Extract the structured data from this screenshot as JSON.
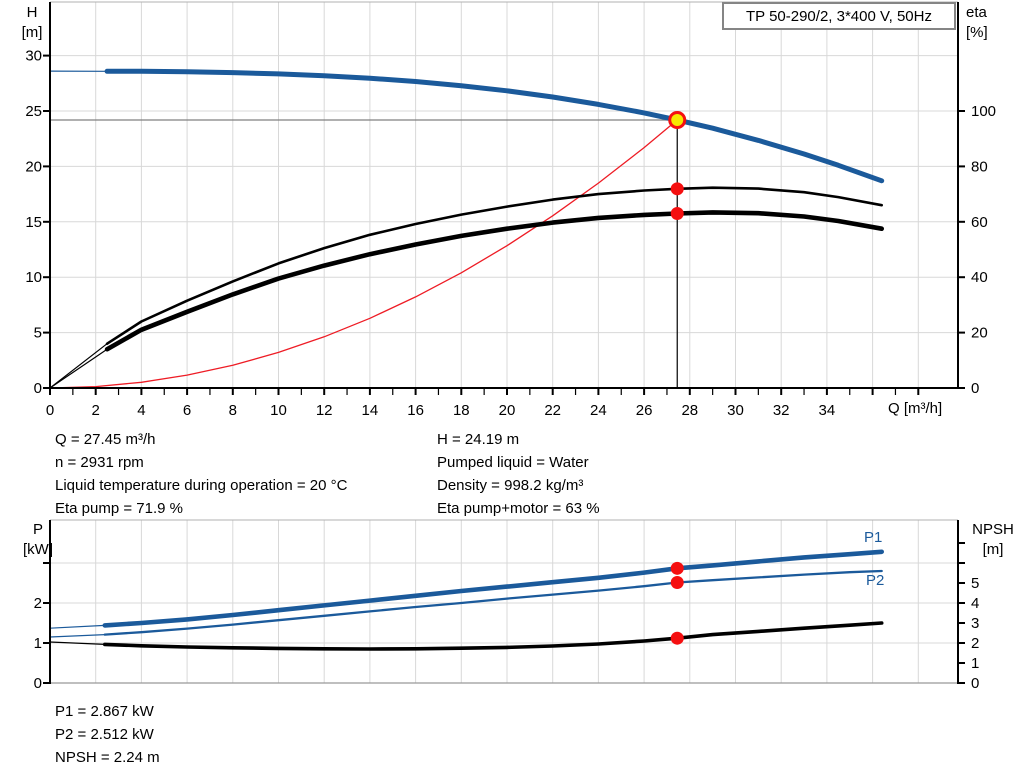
{
  "header": {
    "title": "TP 50-290/2, 3*400 V, 50Hz"
  },
  "colors": {
    "blue": "#1b5a9b",
    "black": "#000000",
    "red": "#ee1c25",
    "marker_red": "#f50f10",
    "duty_yellow": "#f7e700",
    "grid": "#d8d8d8",
    "border_gray": "#b0b0b0",
    "duty_line_gray": "#808080",
    "axis": "#000000"
  },
  "top_chart": {
    "left_axis_label": [
      "H",
      "[m]"
    ],
    "right_axis_label": [
      "eta",
      "[%]"
    ],
    "x_axis_label": "Q [m³/h]",
    "x_tick_labels": [
      0,
      2,
      4,
      6,
      8,
      10,
      12,
      14,
      16,
      18,
      20,
      22,
      24,
      26,
      28,
      30,
      32,
      34
    ],
    "h_tick_labels": [
      0,
      5,
      10,
      15,
      20,
      25,
      30
    ],
    "eta_tick_labels": [
      0,
      20,
      40,
      60,
      80,
      100
    ]
  },
  "bottom_chart": {
    "left_axis_label": [
      "P",
      "[kW]"
    ],
    "right_axis_label": [
      "NPSH",
      "[m]"
    ],
    "p_tick_labels": [
      0,
      1,
      2
    ],
    "p_ticks": [
      0,
      1,
      2,
      3
    ],
    "npsh_tick_labels": [
      0,
      1,
      2,
      3,
      4,
      5
    ],
    "npsh_ticks": [
      0,
      1,
      2,
      3,
      4,
      5,
      6,
      7
    ],
    "series_labels": {
      "p1": "P1",
      "p2": "P2"
    }
  },
  "annotations": {
    "left": [
      "Q = 27.45 m³/h",
      "n = 2931 rpm",
      "Liquid temperature during operation = 20 °C",
      "Eta pump = 71.9 %"
    ],
    "right": [
      "H = 24.19 m",
      "Pumped liquid = Water",
      "Density = 998.2 kg/m³",
      "Eta pump+motor = 63 %"
    ]
  },
  "results": [
    "P1 = 2.867 kW",
    "P2 = 2.512 kW",
    "NPSH = 2.24 m"
  ],
  "chart_data": [
    {
      "type": "line",
      "title": "TP 50-290/2, 3*400 V, 50Hz",
      "xlabel": "Q [m³/h]",
      "y_left_label": "H [m]",
      "y_right_label": "eta [%]",
      "xlim": [
        0,
        39.7
      ],
      "ylim_left": [
        0,
        34.8
      ],
      "ylim_right": [
        0,
        139.4
      ],
      "grid": true,
      "duty_point": {
        "q": 27.45,
        "h": 24.19
      },
      "eta_markers": [
        {
          "q": 27.45,
          "v": 71.9
        },
        {
          "q": 27.45,
          "v": 63.0
        }
      ],
      "series": [
        {
          "name": "system-curve",
          "axis": "left",
          "color": "red",
          "width": 1.3,
          "points": [
            [
              0,
              0
            ],
            [
              2,
              0.13
            ],
            [
              4,
              0.51
            ],
            [
              6,
              1.16
            ],
            [
              8,
              2.05
            ],
            [
              10,
              3.21
            ],
            [
              12,
              4.62
            ],
            [
              14,
              6.29
            ],
            [
              16,
              8.22
            ],
            [
              18,
              10.4
            ],
            [
              20,
              12.84
            ],
            [
              22,
              15.54
            ],
            [
              24,
              18.49
            ],
            [
              26,
              21.7
            ],
            [
              27.45,
              24.19
            ]
          ]
        },
        {
          "name": "eta-pump-plus-motor",
          "axis": "right",
          "color": "black",
          "width": 4.6,
          "lead": [
            [
              0,
              0
            ],
            [
              2.5,
              14
            ]
          ],
          "points": [
            [
              2.5,
              14
            ],
            [
              4,
              21
            ],
            [
              6,
              27.5
            ],
            [
              8,
              33.8
            ],
            [
              10,
              39.5
            ],
            [
              12,
              44.2
            ],
            [
              14,
              48.3
            ],
            [
              16,
              51.8
            ],
            [
              18,
              54.9
            ],
            [
              20,
              57.5
            ],
            [
              22,
              59.7
            ],
            [
              24,
              61.4
            ],
            [
              26,
              62.5
            ],
            [
              27.45,
              63.0
            ],
            [
              29,
              63.4
            ],
            [
              31,
              63.1
            ],
            [
              33,
              61.9
            ],
            [
              34.5,
              60.3
            ],
            [
              36.4,
              57.5
            ]
          ]
        },
        {
          "name": "eta-pump",
          "axis": "right",
          "color": "black",
          "width": 2.6,
          "lead": [
            [
              0,
              0
            ],
            [
              2.5,
              16
            ]
          ],
          "points": [
            [
              2.5,
              16
            ],
            [
              4,
              24
            ],
            [
              6,
              31.5
            ],
            [
              8,
              38.5
            ],
            [
              10,
              45
            ],
            [
              12,
              50.5
            ],
            [
              14,
              55.3
            ],
            [
              16,
              59.2
            ],
            [
              18,
              62.6
            ],
            [
              20,
              65.5
            ],
            [
              22,
              68
            ],
            [
              24,
              70
            ],
            [
              26,
              71.3
            ],
            [
              27.45,
              71.9
            ],
            [
              29,
              72.3
            ],
            [
              31,
              72.0
            ],
            [
              33,
              70.7
            ],
            [
              34.5,
              68.9
            ],
            [
              36.4,
              66.0
            ]
          ]
        },
        {
          "name": "head-curve",
          "axis": "left",
          "color": "blue",
          "width": 5,
          "lead": [
            [
              0,
              28.6
            ],
            [
              2.5,
              28.58
            ]
          ],
          "points": [
            [
              2.5,
              28.58
            ],
            [
              4,
              28.58
            ],
            [
              6,
              28.55
            ],
            [
              8,
              28.47
            ],
            [
              10,
              28.35
            ],
            [
              12,
              28.19
            ],
            [
              14,
              27.96
            ],
            [
              16,
              27.66
            ],
            [
              18,
              27.28
            ],
            [
              20,
              26.82
            ],
            [
              22,
              26.26
            ],
            [
              24,
              25.6
            ],
            [
              26,
              24.83
            ],
            [
              27.45,
              24.19
            ],
            [
              29,
              23.45
            ],
            [
              31,
              22.35
            ],
            [
              33,
              21.12
            ],
            [
              34.5,
              20.1
            ],
            [
              36.4,
              18.7
            ]
          ]
        }
      ]
    },
    {
      "type": "line",
      "title": "",
      "xlabel": "",
      "y_left_label": "P [kW]",
      "y_right_label": "NPSH [m]",
      "xlim": [
        0,
        39.7
      ],
      "ylim_left": [
        0,
        4.08
      ],
      "ylim_right": [
        0,
        8.15
      ],
      "grid": true,
      "markers": [
        {
          "q": 27.45,
          "axis": "left",
          "v": 2.867
        },
        {
          "q": 27.45,
          "axis": "left",
          "v": 2.512
        },
        {
          "q": 27.45,
          "axis": "right",
          "v": 2.24
        }
      ],
      "series": [
        {
          "name": "npsh-curve",
          "axis": "right",
          "color": "black",
          "width": 3.6,
          "lead": [
            [
              0,
              2.05
            ],
            [
              2.4,
              1.93
            ]
          ],
          "points": [
            [
              2.4,
              1.93
            ],
            [
              4,
              1.86
            ],
            [
              6,
              1.8
            ],
            [
              8,
              1.76
            ],
            [
              10,
              1.73
            ],
            [
              12,
              1.71
            ],
            [
              14,
              1.7
            ],
            [
              16,
              1.71
            ],
            [
              18,
              1.74
            ],
            [
              20,
              1.78
            ],
            [
              22,
              1.85
            ],
            [
              24,
              1.95
            ],
            [
              26,
              2.1
            ],
            [
              27.45,
              2.24
            ],
            [
              29,
              2.42
            ],
            [
              31,
              2.58
            ],
            [
              33,
              2.74
            ],
            [
              35,
              2.89
            ],
            [
              36.4,
              3.0
            ]
          ]
        },
        {
          "name": "p2-curve",
          "axis": "left",
          "color": "blue",
          "width": 2.3,
          "lead": [
            [
              0,
              1.15
            ],
            [
              2.4,
              1.21
            ]
          ],
          "points": [
            [
              2.4,
              1.21
            ],
            [
              4,
              1.27
            ],
            [
              6,
              1.36
            ],
            [
              8,
              1.46
            ],
            [
              10,
              1.57
            ],
            [
              12,
              1.68
            ],
            [
              14,
              1.79
            ],
            [
              16,
              1.9
            ],
            [
              18,
              2.0
            ],
            [
              20,
              2.11
            ],
            [
              22,
              2.21
            ],
            [
              24,
              2.31
            ],
            [
              26,
              2.42
            ],
            [
              27.45,
              2.512
            ],
            [
              29,
              2.57
            ],
            [
              31,
              2.64
            ],
            [
              33,
              2.71
            ],
            [
              35,
              2.77
            ],
            [
              36.4,
              2.8
            ]
          ]
        },
        {
          "name": "p1-curve",
          "axis": "left",
          "color": "blue",
          "width": 4.6,
          "lead": [
            [
              0,
              1.37
            ],
            [
              2.4,
              1.44
            ]
          ],
          "points": [
            [
              2.4,
              1.44
            ],
            [
              4,
              1.5
            ],
            [
              6,
              1.59
            ],
            [
              8,
              1.7
            ],
            [
              10,
              1.82
            ],
            [
              12,
              1.94
            ],
            [
              14,
              2.06
            ],
            [
              16,
              2.18
            ],
            [
              18,
              2.3
            ],
            [
              20,
              2.41
            ],
            [
              22,
              2.52
            ],
            [
              24,
              2.63
            ],
            [
              26,
              2.76
            ],
            [
              27.45,
              2.867
            ],
            [
              29,
              2.94
            ],
            [
              31,
              3.04
            ],
            [
              33,
              3.14
            ],
            [
              35,
              3.22
            ],
            [
              36.4,
              3.28
            ]
          ]
        }
      ]
    }
  ]
}
